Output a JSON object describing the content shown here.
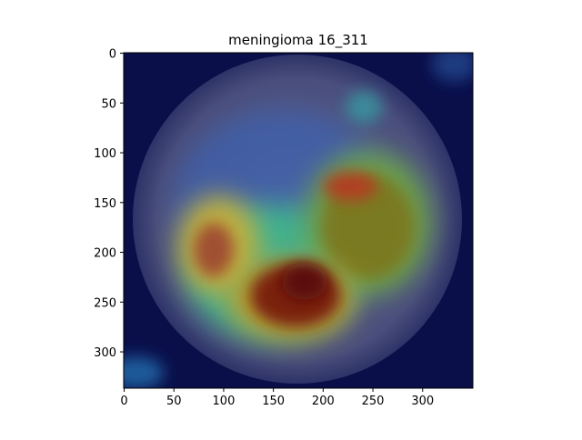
{
  "chart_data": {
    "type": "image",
    "title": "meningioma 16_311",
    "xlim": [
      -0.5,
      350.5
    ],
    "ylim": [
      336.5,
      -0.5
    ],
    "xticks": [
      0,
      50,
      100,
      150,
      200,
      250,
      300
    ],
    "yticks": [
      0,
      50,
      100,
      150,
      200,
      250,
      300
    ]
  }
}
